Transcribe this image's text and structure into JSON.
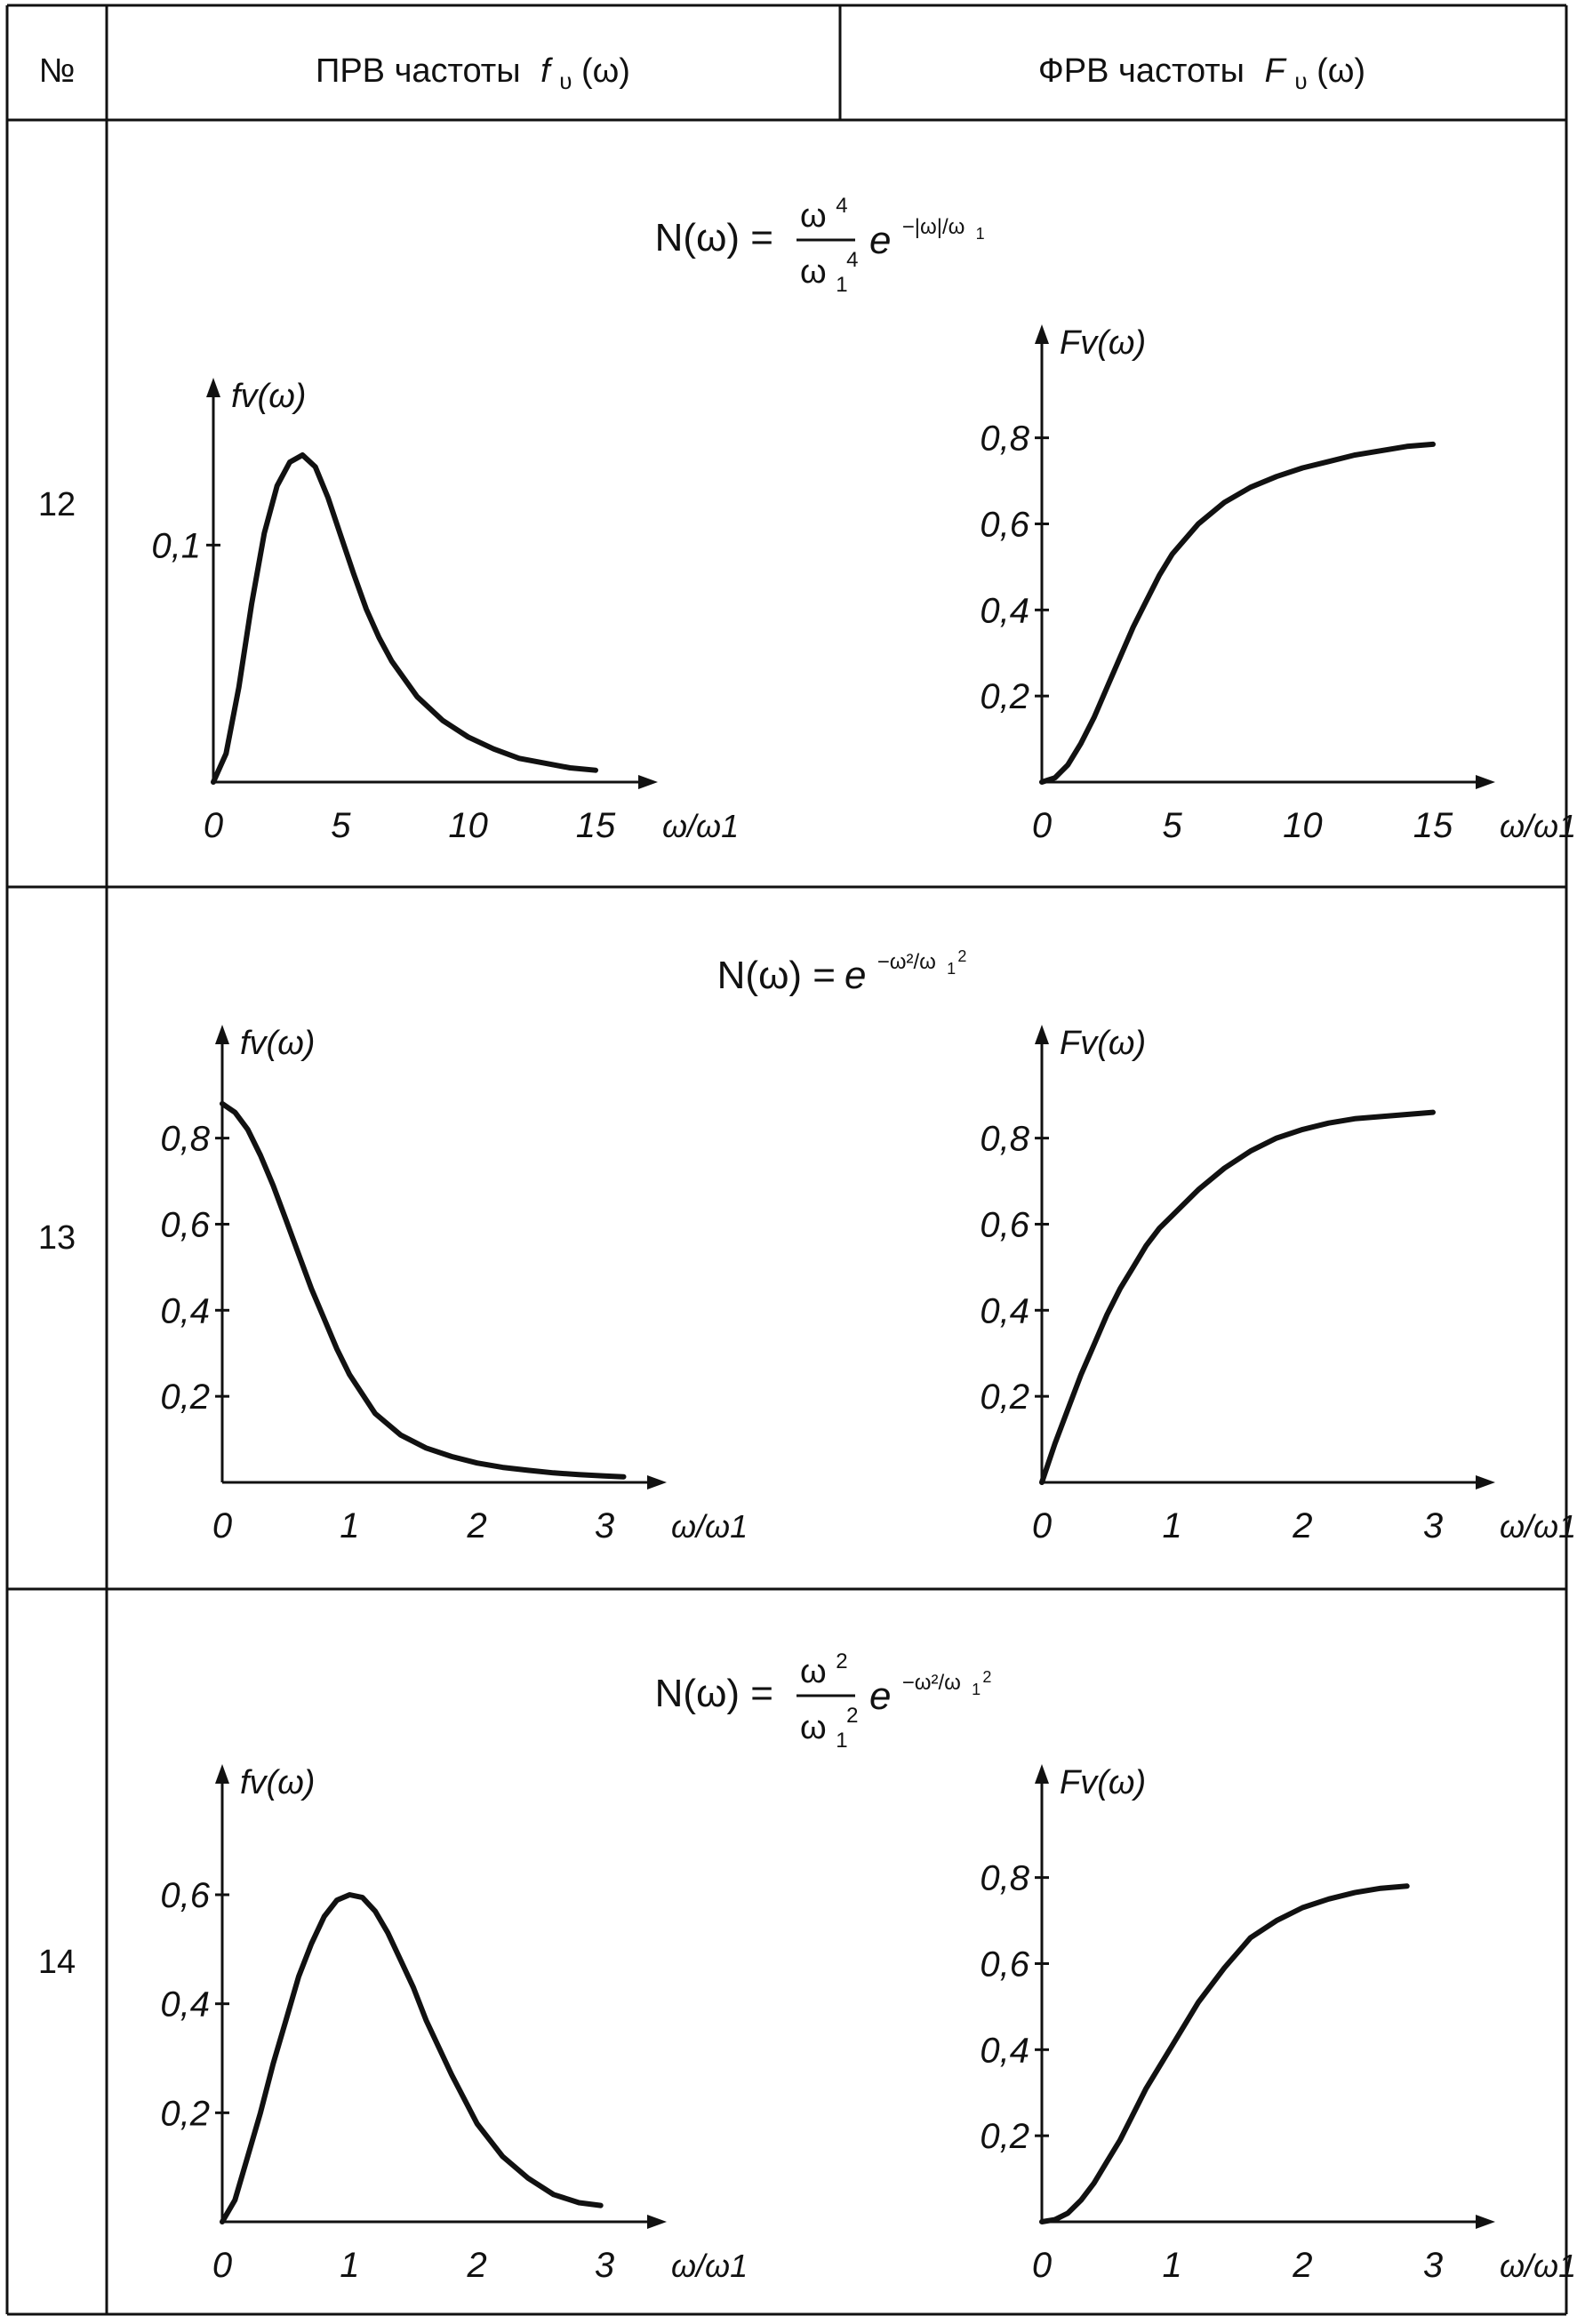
{
  "header": {
    "num": "№",
    "col1": "ПРВ частоты",
    "col1_sym": "f",
    "col1_sub": "υ",
    "col1_arg": "(ω)",
    "col2": "ФРВ частоты",
    "col2_sym": "F",
    "col2_sub": "υ",
    "col2_arg": "(ω)"
  },
  "rows": [
    {
      "num": "12",
      "formula": {
        "lhs": "N(ω) =",
        "num": "ω",
        "num_sup": "4",
        "den": "ω",
        "den_sub": "1",
        "den_sup": "4",
        "exp_base": "e",
        "exp": "−|ω|/ω",
        "exp_sub": "1"
      }
    },
    {
      "num": "13",
      "formula": {
        "lhs": "N(ω) =",
        "exp_base": "e",
        "exp": "−ω²/ω",
        "exp_sub": "1",
        "exp_sup2": "2"
      }
    },
    {
      "num": "14",
      "formula": {
        "lhs": "N(ω) =",
        "num": "ω",
        "num_sup": "2",
        "den": "ω",
        "den_sub": "1",
        "den_sup": "2",
        "exp_base": "e",
        "exp": "−ω²/ω",
        "exp_sub": "1",
        "exp_sup2": "2"
      }
    }
  ],
  "chart_data": [
    {
      "row": "12",
      "type": "line",
      "ylabel": "fv(ω)",
      "xlabel": "ω/ω1",
      "xlim": [
        0,
        15
      ],
      "ylim": [
        0,
        0.15
      ],
      "xticks": [
        "0",
        "5",
        "10",
        "15"
      ],
      "xtick_values": [
        0,
        5,
        10,
        15
      ],
      "yticks": [
        "0,1"
      ],
      "ytick_values": [
        0.1
      ],
      "x": [
        0,
        0.5,
        1,
        1.5,
        2,
        2.5,
        3,
        3.5,
        4,
        4.5,
        5,
        5.5,
        6,
        6.5,
        7,
        8,
        9,
        10,
        11,
        12,
        13,
        14,
        15
      ],
      "y": [
        0,
        0.012,
        0.04,
        0.075,
        0.105,
        0.125,
        0.135,
        0.138,
        0.133,
        0.12,
        0.104,
        0.088,
        0.073,
        0.061,
        0.051,
        0.036,
        0.026,
        0.019,
        0.014,
        0.01,
        0.008,
        0.006,
        0.005
      ]
    },
    {
      "row": "12",
      "type": "line",
      "ylabel": "Fv(ω)",
      "xlabel": "ω/ω1",
      "xlim": [
        0,
        15
      ],
      "ylim": [
        0,
        0.95
      ],
      "xticks": [
        "0",
        "5",
        "10",
        "15"
      ],
      "xtick_values": [
        0,
        5,
        10,
        15
      ],
      "yticks": [
        "0,2",
        "0,4",
        "0,6",
        "0,8"
      ],
      "ytick_values": [
        0.2,
        0.4,
        0.6,
        0.8
      ],
      "x": [
        0,
        0.5,
        1,
        1.5,
        2,
        2.5,
        3,
        3.5,
        4,
        4.5,
        5,
        6,
        7,
        8,
        9,
        10,
        11,
        12,
        13,
        14,
        15
      ],
      "y": [
        0,
        0.01,
        0.04,
        0.09,
        0.15,
        0.22,
        0.29,
        0.36,
        0.42,
        0.48,
        0.53,
        0.6,
        0.65,
        0.685,
        0.71,
        0.73,
        0.745,
        0.76,
        0.77,
        0.78,
        0.785
      ]
    },
    {
      "row": "13",
      "type": "line",
      "ylabel": "fv(ω)",
      "xlabel": "ω/ω1",
      "xlim": [
        0,
        3
      ],
      "ylim": [
        0,
        0.95
      ],
      "xticks": [
        "0",
        "1",
        "2",
        "3"
      ],
      "xtick_values": [
        0,
        1,
        2,
        3
      ],
      "yticks": [
        "0,2",
        "0,4",
        "0,6",
        "0,8"
      ],
      "ytick_values": [
        0.2,
        0.4,
        0.6,
        0.8
      ],
      "x": [
        0,
        0.1,
        0.2,
        0.3,
        0.4,
        0.5,
        0.6,
        0.7,
        0.8,
        0.9,
        1.0,
        1.2,
        1.4,
        1.6,
        1.8,
        2.0,
        2.2,
        2.4,
        2.6,
        2.8,
        3.0,
        3.15
      ],
      "y": [
        0.88,
        0.86,
        0.82,
        0.76,
        0.69,
        0.61,
        0.53,
        0.45,
        0.38,
        0.31,
        0.25,
        0.16,
        0.11,
        0.08,
        0.06,
        0.045,
        0.035,
        0.028,
        0.022,
        0.018,
        0.015,
        0.013
      ]
    },
    {
      "row": "13",
      "type": "line",
      "ylabel": "Fv(ω)",
      "xlabel": "ω/ω1",
      "xlim": [
        0,
        3
      ],
      "ylim": [
        0,
        0.95
      ],
      "xticks": [
        "0",
        "1",
        "2",
        "3"
      ],
      "xtick_values": [
        0,
        1,
        2,
        3
      ],
      "yticks": [
        "0,2",
        "0,4",
        "0,6",
        "0,8"
      ],
      "ytick_values": [
        0.2,
        0.4,
        0.6,
        0.8
      ],
      "x": [
        0,
        0.1,
        0.2,
        0.3,
        0.4,
        0.5,
        0.6,
        0.7,
        0.8,
        0.9,
        1.0,
        1.2,
        1.4,
        1.6,
        1.8,
        2.0,
        2.2,
        2.4,
        2.6,
        2.8,
        3.0
      ],
      "y": [
        0,
        0.09,
        0.17,
        0.25,
        0.32,
        0.39,
        0.45,
        0.5,
        0.55,
        0.59,
        0.62,
        0.68,
        0.73,
        0.77,
        0.8,
        0.82,
        0.835,
        0.845,
        0.85,
        0.855,
        0.86
      ]
    },
    {
      "row": "14",
      "type": "line",
      "ylabel": "fv(ω)",
      "xlabel": "ω/ω1",
      "xlim": [
        0,
        3
      ],
      "ylim": [
        0,
        0.75
      ],
      "xticks": [
        "0",
        "1",
        "2",
        "3"
      ],
      "xtick_values": [
        0,
        1,
        2,
        3
      ],
      "yticks": [
        "0,2",
        "0,4",
        "0,6"
      ],
      "ytick_values": [
        0.2,
        0.4,
        0.6
      ],
      "x": [
        0,
        0.1,
        0.2,
        0.3,
        0.4,
        0.5,
        0.6,
        0.7,
        0.8,
        0.9,
        1.0,
        1.1,
        1.2,
        1.3,
        1.4,
        1.5,
        1.6,
        1.8,
        2.0,
        2.2,
        2.4,
        2.6,
        2.8,
        2.97
      ],
      "y": [
        0,
        0.04,
        0.12,
        0.2,
        0.29,
        0.37,
        0.45,
        0.51,
        0.56,
        0.59,
        0.6,
        0.595,
        0.57,
        0.53,
        0.48,
        0.43,
        0.37,
        0.27,
        0.18,
        0.12,
        0.08,
        0.05,
        0.035,
        0.03
      ]
    },
    {
      "row": "14",
      "type": "line",
      "ylabel": "Fv(ω)",
      "xlabel": "ω/ω1",
      "xlim": [
        0,
        3
      ],
      "ylim": [
        0,
        0.95
      ],
      "xticks": [
        "0",
        "1",
        "2",
        "3"
      ],
      "xtick_values": [
        0,
        1,
        2,
        3
      ],
      "yticks": [
        "0,2",
        "0,4",
        "0,6",
        "0,8"
      ],
      "ytick_values": [
        0.2,
        0.4,
        0.6,
        0.8
      ],
      "x": [
        0,
        0.1,
        0.2,
        0.3,
        0.4,
        0.5,
        0.6,
        0.7,
        0.8,
        0.9,
        1.0,
        1.2,
        1.4,
        1.6,
        1.8,
        2.0,
        2.2,
        2.4,
        2.6,
        2.8
      ],
      "y": [
        0,
        0.005,
        0.02,
        0.05,
        0.09,
        0.14,
        0.19,
        0.25,
        0.31,
        0.36,
        0.41,
        0.51,
        0.59,
        0.66,
        0.7,
        0.73,
        0.75,
        0.765,
        0.775,
        0.78
      ]
    }
  ]
}
